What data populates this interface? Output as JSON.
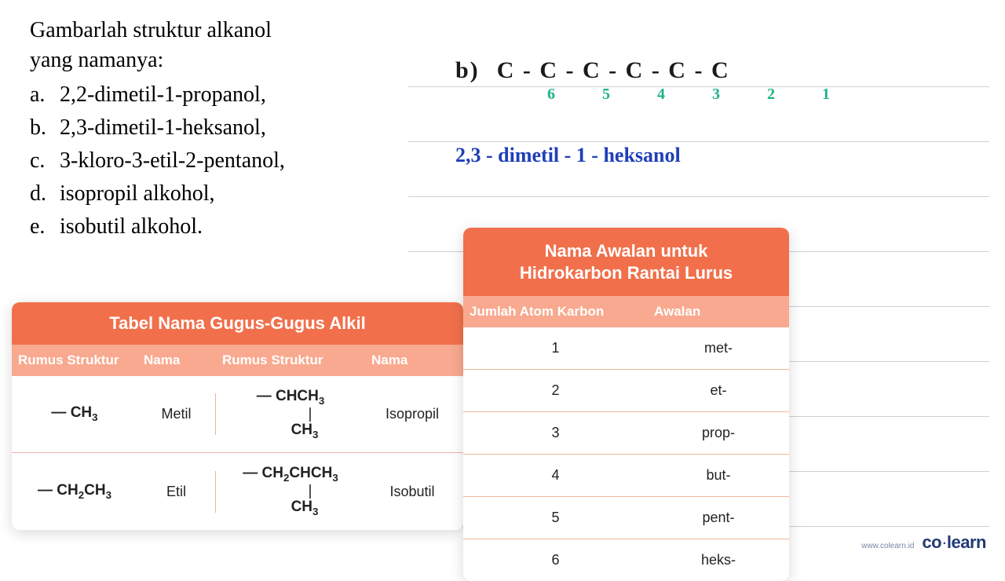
{
  "question": {
    "lead1": "Gambarlah struktur alkanol",
    "lead2": "yang namanya:",
    "items": [
      {
        "marker": "a.",
        "text": "2,2-dimetil-1-propanol,"
      },
      {
        "marker": "b.",
        "text": "2,3-dimetil-1-heksanol,"
      },
      {
        "marker": "c.",
        "text": "3-kloro-3-etil-2-pentanol,"
      },
      {
        "marker": "d.",
        "text": "isopropil alkohol,"
      },
      {
        "marker": "e.",
        "text": "isobutil alkohol."
      }
    ]
  },
  "handwriting": {
    "label": "b)",
    "chain": "C  - C  - C  - C  - C  - C",
    "numbers": [
      "6",
      "5",
      "4",
      "3",
      "2",
      "1"
    ],
    "name": "2,3 - dimetil - 1 - heksanol"
  },
  "alkyl_table": {
    "title": "Tabel Nama Gugus-Gugus Alkil",
    "headers": [
      "Rumus Struktur",
      "Nama",
      "Rumus Struktur",
      "Nama"
    ],
    "rows": [
      {
        "f1_html": "— CH<sub>3</sub>",
        "n1": "Metil",
        "f2_html": "— CHCH<sub>3</sub><span class='stick'>|</span><span class='branch'>CH<sub>3</sub></span>",
        "n2": "Isopropil"
      },
      {
        "f1_html": "— CH<sub>2</sub>CH<sub>3</sub>",
        "n1": "Etil",
        "f2_html": "— CH<sub>2</sub>CHCH<sub>3</sub><span class='stick'>|</span><span class='branch'>CH<sub>3</sub></span>",
        "n2": "Isobutil"
      }
    ],
    "colors": {
      "header_bg": "#f1704b",
      "subhead_bg": "#f8a98f",
      "row_border": "#f2b49e"
    }
  },
  "prefix_table": {
    "title_line1": "Nama Awalan untuk",
    "title_line2": "Hidrokarbon Rantai Lurus",
    "headers": [
      "Jumlah Atom Karbon",
      "Awalan"
    ],
    "rows": [
      {
        "n": "1",
        "p": "met-"
      },
      {
        "n": "2",
        "p": "et-"
      },
      {
        "n": "3",
        "p": "prop-"
      },
      {
        "n": "4",
        "p": "but-"
      },
      {
        "n": "5",
        "p": "pent-"
      },
      {
        "n": "6",
        "p": "heks-"
      }
    ]
  },
  "paper": {
    "rule_color": "#cfcfd2",
    "rule_positions": [
      55,
      125,
      195,
      265,
      335,
      405,
      475,
      545,
      615
    ]
  },
  "footer": {
    "site": "www.colearn.id",
    "brand_pre": "co",
    "brand_dot": "·",
    "brand_post": "learn"
  },
  "palette": {
    "handwriting_chain": "#1a1a1a",
    "handwriting_numbers": "#1db28a",
    "handwriting_name": "#1f3fb8",
    "table_header": "#f1704b",
    "table_subhead": "#f8a98f"
  }
}
